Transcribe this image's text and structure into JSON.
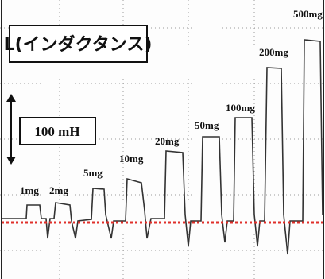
{
  "title": "L(インダクタンス)",
  "scale_label": "100 mH",
  "pulse_labels": [
    "1mg",
    "2mg",
    "5mg",
    "10mg",
    "20mg",
    "50mg",
    "100mg",
    "200mg",
    "500mg"
  ]
}
